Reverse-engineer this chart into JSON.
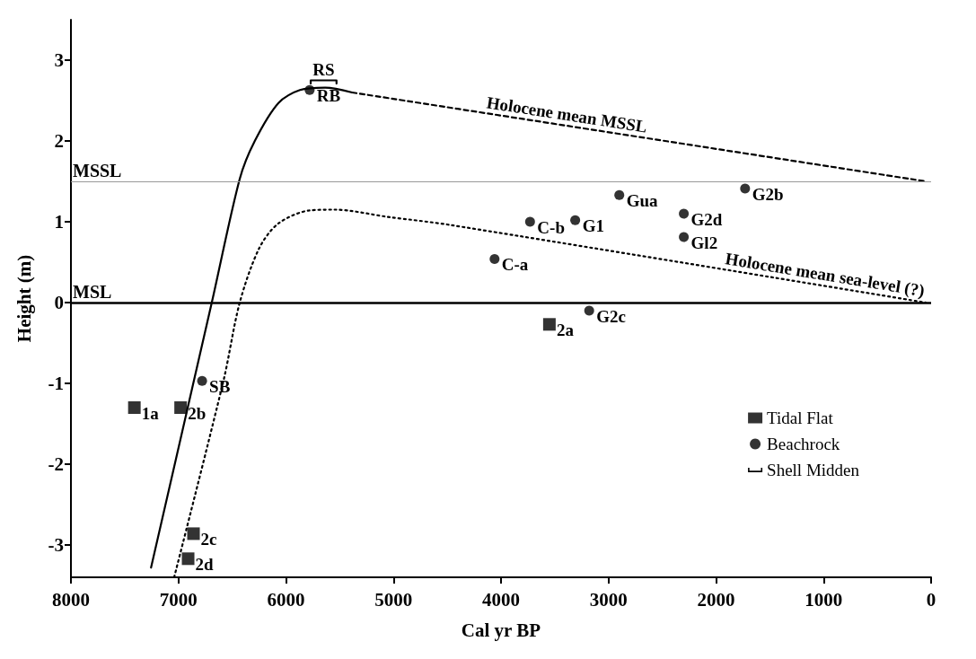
{
  "chart_data": {
    "type": "scatter",
    "xlabel": "Cal yr BP",
    "ylabel": "Height (m)",
    "xlim": [
      8000,
      0
    ],
    "xticks": [
      8000,
      7000,
      6000,
      5000,
      4000,
      3000,
      2000,
      1000,
      0
    ],
    "ylim": [
      -3.4,
      3.5
    ],
    "yticks": [
      -3,
      -2,
      -1,
      0,
      1,
      2,
      3
    ],
    "legend": "bottom right",
    "series": [
      {
        "name": "Tidal Flat",
        "marker": "square",
        "color": "#000000",
        "x": [
          7410,
          6980,
          6860,
          6910,
          3550
        ],
        "values": [
          -1.3,
          -1.3,
          -2.86,
          -3.17,
          -0.27
        ]
      },
      {
        "name": "Beachrock",
        "marker": "circle",
        "color": "#000000",
        "x": [
          6780,
          5780,
          4060,
          3730,
          3310,
          2900,
          3180,
          2300,
          2300,
          1730
        ],
        "values": [
          -0.97,
          2.63,
          0.54,
          1.0,
          1.02,
          1.33,
          -0.1,
          1.1,
          0.81,
          1.41
        ]
      },
      {
        "name": "Shell Midden",
        "type": "line",
        "line_style": "solid",
        "color": "#000000",
        "x": [
          5770,
          5770,
          5530,
          5530
        ],
        "values": [
          2.71,
          2.75,
          2.75,
          2.71
        ]
      },
      {
        "type": "line",
        "line_style": "solid",
        "color": "#000000",
        "x": [
          7255,
          6690,
          6430,
          6290,
          6070,
          5870,
          5635,
          5385
        ],
        "values": [
          -3.28,
          0,
          1.53,
          2.0,
          2.47,
          2.63,
          2.66,
          2.6
        ]
      },
      {
        "type": "line",
        "line_style": "dashed",
        "color": "#000000",
        "x": [
          5385,
          50
        ],
        "values": [
          2.6,
          1.5
        ]
      },
      {
        "type": "line",
        "line_style": "dotted",
        "color": "#000000",
        "x": [
          7040,
          6580,
          6430,
          6250,
          6070,
          5780,
          5550,
          5050,
          4470,
          50
        ],
        "values": [
          -3.4,
          -0.96,
          0,
          0.67,
          0.98,
          1.14,
          1.15,
          1.06,
          0.96,
          0
        ]
      }
    ],
    "ref_lines": [
      {
        "axis": "y",
        "value": 1.5,
        "label": "MSSL",
        "color": "#999999"
      },
      {
        "axis": "y",
        "value": 0,
        "label": "MSL",
        "color": "#000000"
      }
    ],
    "annotations": [
      {
        "text": "1a",
        "x": 7410,
        "y": -1.3
      },
      {
        "text": "2b",
        "x": 6980,
        "y": -1.3
      },
      {
        "text": "2c",
        "x": 6860,
        "y": -2.86
      },
      {
        "text": "2d",
        "x": 6910,
        "y": -3.17
      },
      {
        "text": "2a",
        "x": 3550,
        "y": -0.27
      },
      {
        "text": "SB",
        "x": 6780,
        "y": -0.97
      },
      {
        "text": "RB",
        "x": 5780,
        "y": 2.63
      },
      {
        "text": "C-a",
        "x": 4060,
        "y": 0.54
      },
      {
        "text": "C-b",
        "x": 3730,
        "y": 1.0
      },
      {
        "text": "G1",
        "x": 3310,
        "y": 1.02
      },
      {
        "text": "Gua",
        "x": 2900,
        "y": 1.33
      },
      {
        "text": "G2c",
        "x": 3180,
        "y": -0.1
      },
      {
        "text": "G2d",
        "x": 2300,
        "y": 1.1
      },
      {
        "text": "Gl2",
        "x": 2300,
        "y": 0.81
      },
      {
        "text": "G2b",
        "x": 1730,
        "y": 1.41
      },
      {
        "text": "RS",
        "x": 5650,
        "y": 2.75
      },
      {
        "text": "Holocene mean MSSL",
        "x": 3400,
        "y": 2.19
      },
      {
        "text": "Holocene mean sea-level (?)",
        "x": 1000,
        "y": 0.21
      }
    ]
  }
}
